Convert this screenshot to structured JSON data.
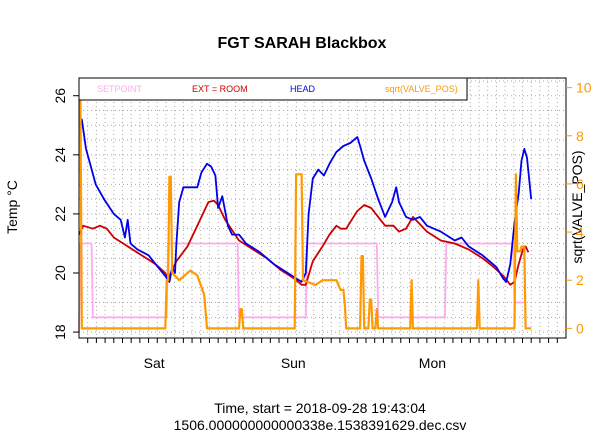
{
  "chart_data": {
    "type": "line",
    "title": "FGT SARAH Blackbox",
    "xlabel": "Time, start = 2018-09-28 19:43:04",
    "xlabel2": "1506.000000000000338e.1538391629.dec.csv",
    "ylabel": "Temp °C",
    "ylabel_right": "sqrt(VALVE_POS)",
    "ylim": [
      17.8,
      26.6
    ],
    "ylim_right": [
      -0.4,
      10.4
    ],
    "xlim": [
      0,
      3.5
    ],
    "y_ticks": [
      18,
      20,
      22,
      24,
      26
    ],
    "y_right_ticks": [
      0,
      2,
      4,
      6,
      8,
      10
    ],
    "x_tick_labels": [
      {
        "x": 0.54,
        "label": "Sat"
      },
      {
        "x": 1.54,
        "label": "Sun"
      },
      {
        "x": 2.54,
        "label": "Mon"
      }
    ],
    "grid": true,
    "legend_position": "top",
    "series": [
      {
        "name": "SETPOINT",
        "color": "#ffaaee",
        "axis": "left",
        "points": [
          [
            0.0,
            18.0
          ],
          [
            0.01,
            21.0
          ],
          [
            0.09,
            21.0
          ],
          [
            0.1,
            18.5
          ],
          [
            0.63,
            18.5
          ],
          [
            0.64,
            21.0
          ],
          [
            1.14,
            21.0
          ],
          [
            1.15,
            18.5
          ],
          [
            1.63,
            18.5
          ],
          [
            1.64,
            21.0
          ],
          [
            2.14,
            21.0
          ],
          [
            2.15,
            18.5
          ],
          [
            2.63,
            18.5
          ],
          [
            2.64,
            21.0
          ],
          [
            3.12,
            21.0
          ],
          [
            3.13,
            19.0
          ],
          [
            3.2,
            19.0
          ]
        ]
      },
      {
        "name": "EXT = ROOM",
        "color": "#cc0000",
        "axis": "left",
        "points": [
          [
            0.0,
            21.3
          ],
          [
            0.03,
            21.6
          ],
          [
            0.1,
            21.5
          ],
          [
            0.15,
            21.6
          ],
          [
            0.2,
            21.5
          ],
          [
            0.25,
            21.2
          ],
          [
            0.35,
            20.9
          ],
          [
            0.45,
            20.6
          ],
          [
            0.55,
            20.3
          ],
          [
            0.62,
            20.0
          ],
          [
            0.64,
            19.8
          ],
          [
            0.66,
            20.0
          ],
          [
            0.7,
            20.4
          ],
          [
            0.78,
            20.9
          ],
          [
            0.85,
            21.6
          ],
          [
            0.9,
            22.1
          ],
          [
            0.93,
            22.4
          ],
          [
            0.97,
            22.45
          ],
          [
            1.0,
            22.3
          ],
          [
            1.05,
            21.8
          ],
          [
            1.15,
            21.1
          ],
          [
            1.25,
            20.8
          ],
          [
            1.35,
            20.5
          ],
          [
            1.45,
            20.1
          ],
          [
            1.55,
            19.8
          ],
          [
            1.6,
            19.6
          ],
          [
            1.63,
            19.6
          ],
          [
            1.68,
            20.4
          ],
          [
            1.75,
            20.9
          ],
          [
            1.8,
            21.3
          ],
          [
            1.85,
            21.6
          ],
          [
            1.88,
            21.5
          ],
          [
            1.92,
            21.5
          ],
          [
            1.96,
            21.8
          ],
          [
            2.0,
            22.1
          ],
          [
            2.05,
            22.3
          ],
          [
            2.1,
            22.2
          ],
          [
            2.15,
            21.9
          ],
          [
            2.2,
            21.6
          ],
          [
            2.26,
            21.6
          ],
          [
            2.3,
            21.4
          ],
          [
            2.35,
            21.5
          ],
          [
            2.4,
            21.9
          ],
          [
            2.42,
            21.8
          ],
          [
            2.5,
            21.4
          ],
          [
            2.6,
            21.1
          ],
          [
            2.7,
            21.0
          ],
          [
            2.8,
            20.8
          ],
          [
            2.9,
            20.5
          ],
          [
            2.98,
            20.2
          ],
          [
            3.05,
            19.9
          ],
          [
            3.1,
            19.6
          ],
          [
            3.13,
            19.7
          ],
          [
            3.16,
            20.3
          ],
          [
            3.19,
            20.8
          ],
          [
            3.21,
            20.9
          ],
          [
            3.23,
            20.7
          ]
        ]
      },
      {
        "name": "HEAD",
        "color": "#0000ee",
        "axis": "left",
        "points": [
          [
            0.0,
            25.2
          ],
          [
            0.02,
            25.2
          ],
          [
            0.05,
            24.2
          ],
          [
            0.08,
            23.7
          ],
          [
            0.12,
            23.0
          ],
          [
            0.18,
            22.5
          ],
          [
            0.25,
            22.0
          ],
          [
            0.3,
            21.8
          ],
          [
            0.33,
            21.2
          ],
          [
            0.35,
            21.8
          ],
          [
            0.37,
            21.0
          ],
          [
            0.42,
            20.8
          ],
          [
            0.5,
            20.6
          ],
          [
            0.55,
            20.3
          ],
          [
            0.62,
            19.9
          ],
          [
            0.65,
            19.7
          ],
          [
            0.67,
            20.2
          ],
          [
            0.69,
            20.0
          ],
          [
            0.7,
            21.0
          ],
          [
            0.72,
            22.4
          ],
          [
            0.75,
            22.9
          ],
          [
            0.8,
            22.9
          ],
          [
            0.85,
            22.9
          ],
          [
            0.88,
            23.4
          ],
          [
            0.92,
            23.7
          ],
          [
            0.95,
            23.6
          ],
          [
            0.98,
            23.3
          ],
          [
            1.0,
            22.2
          ],
          [
            1.03,
            22.6
          ],
          [
            1.07,
            21.6
          ],
          [
            1.1,
            21.3
          ],
          [
            1.15,
            21.3
          ],
          [
            1.2,
            21.0
          ],
          [
            1.3,
            20.7
          ],
          [
            1.4,
            20.3
          ],
          [
            1.5,
            20.0
          ],
          [
            1.6,
            19.7
          ],
          [
            1.63,
            20.0
          ],
          [
            1.65,
            22.0
          ],
          [
            1.68,
            23.2
          ],
          [
            1.72,
            23.5
          ],
          [
            1.76,
            23.3
          ],
          [
            1.8,
            23.7
          ],
          [
            1.85,
            24.1
          ],
          [
            1.9,
            24.3
          ],
          [
            1.95,
            24.4
          ],
          [
            2.0,
            24.6
          ],
          [
            2.02,
            24.3
          ],
          [
            2.05,
            23.8
          ],
          [
            2.1,
            23.2
          ],
          [
            2.15,
            22.5
          ],
          [
            2.2,
            21.9
          ],
          [
            2.25,
            22.4
          ],
          [
            2.28,
            22.9
          ],
          [
            2.3,
            22.4
          ],
          [
            2.35,
            21.9
          ],
          [
            2.4,
            21.8
          ],
          [
            2.45,
            21.9
          ],
          [
            2.5,
            21.6
          ],
          [
            2.6,
            21.4
          ],
          [
            2.7,
            21.1
          ],
          [
            2.75,
            21.2
          ],
          [
            2.8,
            20.9
          ],
          [
            2.9,
            20.6
          ],
          [
            3.0,
            20.2
          ],
          [
            3.05,
            19.8
          ],
          [
            3.07,
            19.7
          ],
          [
            3.1,
            20.3
          ],
          [
            3.13,
            21.7
          ],
          [
            3.16,
            22.7
          ],
          [
            3.18,
            23.8
          ],
          [
            3.2,
            24.2
          ],
          [
            3.22,
            23.9
          ],
          [
            3.25,
            22.5
          ]
        ]
      },
      {
        "name": "sqrt(VALVE_POS)",
        "color": "#ff9900",
        "axis": "right",
        "points": [
          [
            0.0,
            10.0
          ],
          [
            0.01,
            10.0
          ],
          [
            0.02,
            0.0
          ],
          [
            0.62,
            0.0
          ],
          [
            0.63,
            2.0
          ],
          [
            0.64,
            2.0
          ],
          [
            0.65,
            6.3
          ],
          [
            0.66,
            6.3
          ],
          [
            0.67,
            2.3
          ],
          [
            0.72,
            2.0
          ],
          [
            0.76,
            2.2
          ],
          [
            0.8,
            2.4
          ],
          [
            0.85,
            2.2
          ],
          [
            0.9,
            1.4
          ],
          [
            0.92,
            0.0
          ],
          [
            1.15,
            0.0
          ],
          [
            1.16,
            0.8
          ],
          [
            1.17,
            0.8
          ],
          [
            1.18,
            0.0
          ],
          [
            1.55,
            0.0
          ],
          [
            1.56,
            6.4
          ],
          [
            1.6,
            6.4
          ],
          [
            1.61,
            2.0
          ],
          [
            1.7,
            1.8
          ],
          [
            1.75,
            2.0
          ],
          [
            1.85,
            2.0
          ],
          [
            1.88,
            1.6
          ],
          [
            1.9,
            1.6
          ],
          [
            1.91,
            1.0
          ],
          [
            1.92,
            0.0
          ],
          [
            2.02,
            0.0
          ],
          [
            2.03,
            3.0
          ],
          [
            2.04,
            3.0
          ],
          [
            2.05,
            0.0
          ],
          [
            2.08,
            0.0
          ],
          [
            2.09,
            1.2
          ],
          [
            2.1,
            1.2
          ],
          [
            2.11,
            0.0
          ],
          [
            2.13,
            0.0
          ],
          [
            2.14,
            0.8
          ],
          [
            2.15,
            0.0
          ],
          [
            2.38,
            0.0
          ],
          [
            2.39,
            2.0
          ],
          [
            2.4,
            0.0
          ],
          [
            2.64,
            0.0
          ],
          [
            2.65,
            0.0
          ],
          [
            2.86,
            0.0
          ],
          [
            2.87,
            2.0
          ],
          [
            2.88,
            0.0
          ],
          [
            3.13,
            0.0
          ],
          [
            3.14,
            6.4
          ],
          [
            3.15,
            3.2
          ],
          [
            3.17,
            3.2
          ],
          [
            3.18,
            3.4
          ],
          [
            3.2,
            3.4
          ],
          [
            3.21,
            0.0
          ],
          [
            3.25,
            0.0
          ]
        ]
      }
    ]
  }
}
